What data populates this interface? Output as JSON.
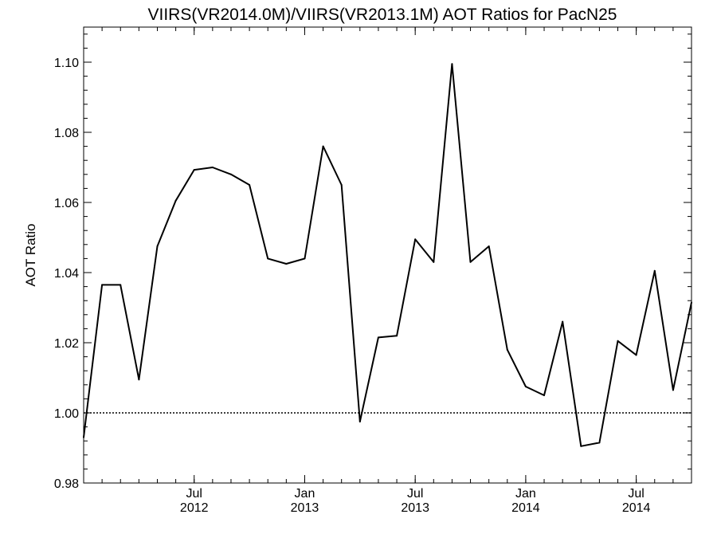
{
  "chart_data": {
    "type": "line",
    "title": "VIIRS(VR2014.0M)/VIIRS(VR2013.1M)  AOT Ratios for PacN25",
    "xlabel": "",
    "ylabel": "AOT Ratio",
    "xlim": [
      "2012-01",
      "2014-10"
    ],
    "ylim": [
      0.98,
      1.11
    ],
    "yticks": [
      {
        "value": 0.98,
        "label": "0.98"
      },
      {
        "value": 1.0,
        "label": "1.00"
      },
      {
        "value": 1.02,
        "label": "1.02"
      },
      {
        "value": 1.04,
        "label": "1.04"
      },
      {
        "value": 1.06,
        "label": "1.06"
      },
      {
        "value": 1.08,
        "label": "1.08"
      },
      {
        "value": 1.1,
        "label": "1.10"
      }
    ],
    "xticks": [
      {
        "date": "2012-07",
        "month": "Jul",
        "year": "2012"
      },
      {
        "date": "2013-01",
        "month": "Jan",
        "year": "2013"
      },
      {
        "date": "2013-07",
        "month": "Jul",
        "year": "2013"
      },
      {
        "date": "2014-01",
        "month": "Jan",
        "year": "2014"
      },
      {
        "date": "2014-07",
        "month": "Jul",
        "year": "2014"
      }
    ],
    "reference_lines": [
      1.0
    ],
    "grid": false,
    "series": [
      {
        "x": [
          "2012-01",
          "2012-02",
          "2012-03",
          "2012-04",
          "2012-05",
          "2012-06",
          "2012-07",
          "2012-08",
          "2012-09",
          "2012-10",
          "2012-11",
          "2012-12",
          "2013-01",
          "2013-02",
          "2013-03",
          "2013-04",
          "2013-05",
          "2013-06",
          "2013-07",
          "2013-08",
          "2013-09",
          "2013-10",
          "2013-11",
          "2013-12",
          "2014-01",
          "2014-02",
          "2014-03",
          "2014-04",
          "2014-05",
          "2014-06",
          "2014-07",
          "2014-08",
          "2014-09",
          "2014-10"
        ],
        "values": [
          0.993,
          1.0365,
          1.0365,
          1.0095,
          1.0475,
          1.0605,
          1.0693,
          1.07,
          1.068,
          1.065,
          1.044,
          1.0425,
          1.044,
          1.076,
          1.065,
          0.9975,
          1.0215,
          1.022,
          1.0495,
          1.043,
          1.0995,
          1.043,
          1.0475,
          1.018,
          1.0075,
          1.005,
          1.026,
          0.9905,
          0.9915,
          1.0205,
          1.0165,
          1.0405,
          1.0065,
          1.0315
        ]
      }
    ]
  }
}
